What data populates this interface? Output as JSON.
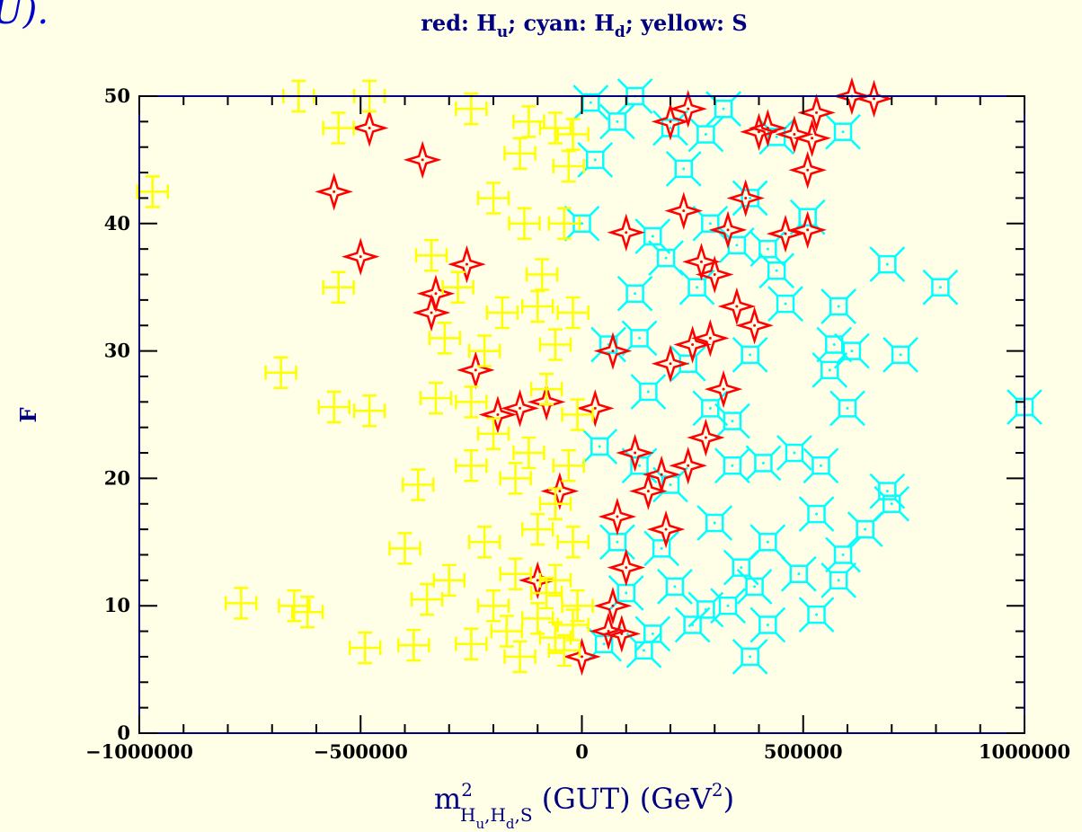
{
  "corner_text": "U).",
  "chart_data": {
    "type": "scatter",
    "title": [
      "red: H",
      "u",
      "; cyan: H",
      "d",
      "; yellow: S"
    ],
    "x_label": [
      "m",
      "2",
      "H",
      "u",
      ",H",
      "d",
      ",S",
      " (GUT) (GeV",
      "2",
      ")"
    ],
    "y_label": "F",
    "xlim": [
      -1000000,
      1000000
    ],
    "ylim": [
      0,
      50
    ],
    "xticks": [
      {
        "value": -1000000,
        "label": "−1000000"
      },
      {
        "value": -500000,
        "label": "−500000"
      },
      0,
      500000,
      1000000
    ],
    "yticks": [
      0,
      10,
      20,
      30,
      40,
      50
    ],
    "xminorticks": [
      -900000,
      -800000,
      -700000,
      -600000,
      -400000,
      -300000,
      -200000,
      -100000,
      100000,
      200000,
      300000,
      400000,
      600000,
      700000,
      800000,
      900000
    ],
    "yminorticks": [
      2,
      4,
      6,
      8,
      12,
      14,
      16,
      18,
      22,
      24,
      26,
      28,
      32,
      34,
      36,
      38,
      42,
      44,
      46,
      48
    ],
    "series": [
      {
        "color": "#ff0000",
        "marker": "star",
        "x": [
          -480000,
          -360000,
          -560000,
          -500000,
          -260000,
          -340000,
          -330000,
          -240000,
          -190000,
          -140000,
          -80000,
          30000,
          70000,
          100000,
          200000,
          240000,
          400000,
          420000,
          480000,
          530000,
          610000,
          660000,
          510000,
          520000,
          370000,
          230000,
          330000,
          460000,
          510000,
          270000,
          300000,
          350000,
          390000,
          250000,
          290000,
          200000,
          320000,
          280000,
          240000,
          180000,
          150000,
          80000,
          190000,
          100000,
          70000,
          60000,
          90000,
          0,
          -50000,
          -100000,
          120000
        ],
        "values": [
          47.5,
          45,
          42.5,
          37.4,
          36.8,
          33,
          34.5,
          28.5,
          25,
          25.5,
          26,
          25.5,
          30,
          39.3,
          48,
          49,
          47.2,
          47.5,
          47,
          48.7,
          50,
          49.8,
          44.2,
          46.7,
          42,
          41,
          39.5,
          39.2,
          39.5,
          37,
          36,
          33.5,
          32,
          30.5,
          31,
          29,
          27,
          23.2,
          21,
          20.3,
          19,
          17,
          16,
          13,
          10,
          8,
          7.8,
          6,
          19,
          12,
          22
        ]
      },
      {
        "color": "#00ffff",
        "marker": "box",
        "x": [
          20000,
          120000,
          320000,
          80000,
          200000,
          280000,
          440000,
          590000,
          30000,
          230000,
          380000,
          0,
          160000,
          290000,
          420000,
          510000,
          350000,
          690000,
          810000,
          120000,
          190000,
          260000,
          440000,
          460000,
          580000,
          60000,
          130000,
          240000,
          380000,
          570000,
          610000,
          720000,
          560000,
          150000,
          290000,
          340000,
          600000,
          1000000,
          480000,
          40000,
          130000,
          200000,
          340000,
          410000,
          540000,
          690000,
          700000,
          80000,
          180000,
          300000,
          420000,
          530000,
          590000,
          640000,
          100000,
          210000,
          330000,
          390000,
          490000,
          580000,
          50000,
          160000,
          250000,
          380000,
          420000,
          530000,
          140000,
          280000,
          360000
        ],
        "values": [
          49.5,
          50,
          49,
          48,
          47.5,
          47,
          46.8,
          47.2,
          45,
          44.3,
          42,
          40,
          39,
          40,
          38,
          40.5,
          38.3,
          36.8,
          35,
          34.5,
          37.3,
          35,
          36.3,
          33.7,
          33.5,
          30.5,
          31,
          29,
          29.7,
          30.5,
          30,
          29.7,
          28.5,
          26.8,
          25.5,
          24.5,
          25.5,
          25.6,
          22,
          22.5,
          21,
          19.5,
          21,
          21.2,
          21,
          19,
          18,
          15,
          14.5,
          16.5,
          15,
          17.2,
          14,
          16,
          11,
          11.5,
          10,
          11.5,
          12.5,
          12,
          7,
          7.8,
          8.5,
          6,
          8.5,
          9.3,
          6.5,
          9.7,
          13
        ]
      },
      {
        "color": "#ffff00",
        "marker": "cross",
        "x": [
          -970000,
          -640000,
          -480000,
          -550000,
          -250000,
          -120000,
          -60000,
          -20000,
          -30000,
          -140000,
          -200000,
          -130000,
          -40000,
          -340000,
          -550000,
          -280000,
          -180000,
          -100000,
          -20000,
          -310000,
          -60000,
          -680000,
          -560000,
          -480000,
          -250000,
          -80000,
          -330000,
          -200000,
          -120000,
          -30000,
          -370000,
          -150000,
          -60000,
          -100000,
          -400000,
          -220000,
          -20000,
          -300000,
          -150000,
          -60000,
          -770000,
          -650000,
          -620000,
          -350000,
          -200000,
          -100000,
          -20000,
          -490000,
          -380000,
          -250000,
          -140000,
          -40000,
          -80000,
          -10000,
          -170000,
          -220000,
          -90000,
          -10000,
          -250000,
          -60000
        ],
        "values": [
          42.5,
          50,
          50,
          47.5,
          49,
          48,
          47.5,
          47,
          44.5,
          45.5,
          42,
          40,
          40,
          37.5,
          35,
          35,
          33,
          33.5,
          33,
          31,
          30.5,
          28.3,
          25.6,
          25.3,
          26,
          27,
          26.3,
          23.5,
          22,
          21,
          19.5,
          20,
          18,
          16,
          14.5,
          15,
          15,
          12,
          12.5,
          12,
          10.2,
          10,
          9.5,
          10.5,
          10,
          9,
          8.5,
          6.7,
          6.9,
          7,
          6,
          6.5,
          11,
          10,
          8,
          30,
          36,
          25,
          21,
          7.5
        ]
      }
    ]
  }
}
